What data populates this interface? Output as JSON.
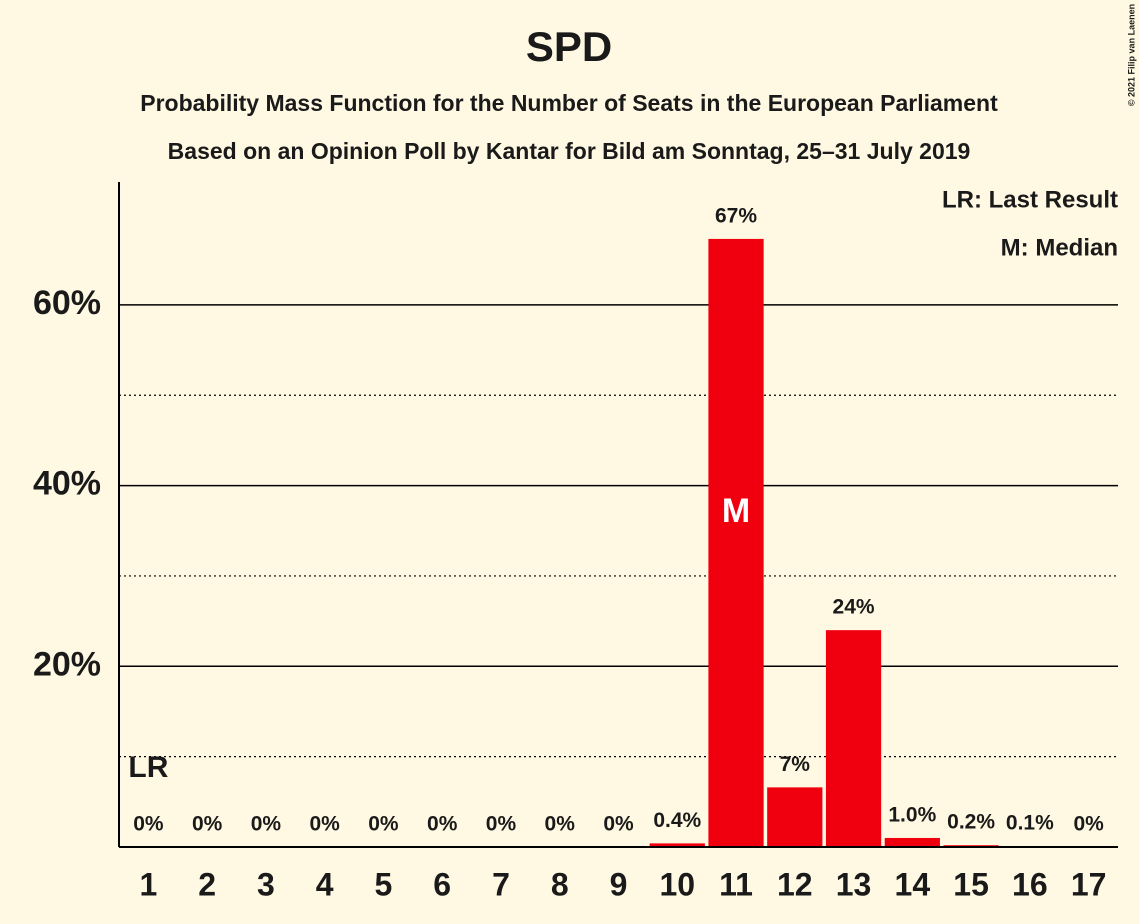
{
  "chart_data": {
    "type": "bar",
    "title": "SPD",
    "subtitle": [
      "Probability Mass Function for the Number of Seats in the European Parliament",
      "Based on an Opinion Poll by Kantar for Bild am Sonntag, 25–31 July 2019"
    ],
    "categories": [
      "1",
      "2",
      "3",
      "4",
      "5",
      "6",
      "7",
      "8",
      "9",
      "10",
      "11",
      "12",
      "13",
      "14",
      "15",
      "16",
      "17"
    ],
    "values": [
      0,
      0,
      0,
      0,
      0,
      0,
      0,
      0,
      0,
      0.4,
      67.3,
      6.6,
      24,
      1.0,
      0.2,
      0.1,
      0
    ],
    "value_labels": [
      "0%",
      "0%",
      "0%",
      "0%",
      "0%",
      "0%",
      "0%",
      "0%",
      "0%",
      "0.4%",
      "67%",
      "7%",
      "24%",
      "1.0%",
      "0.2%",
      "0.1%",
      "0%"
    ],
    "color": "#f0000f",
    "ylim": [
      0,
      73.6
    ],
    "yticks": [
      {
        "value": 20,
        "label": "20%"
      },
      {
        "value": 40,
        "label": "40%"
      },
      {
        "value": 60,
        "label": "60%"
      }
    ],
    "minor_yticks": [
      10,
      30,
      50
    ],
    "grid": true,
    "markers": [
      {
        "label": "LR",
        "category": "1"
      },
      {
        "label": "M",
        "category": "11"
      }
    ],
    "legend": [
      "LR: Last Result",
      "M: Median"
    ],
    "copyright": "© 2021 Filip van Laenen"
  }
}
